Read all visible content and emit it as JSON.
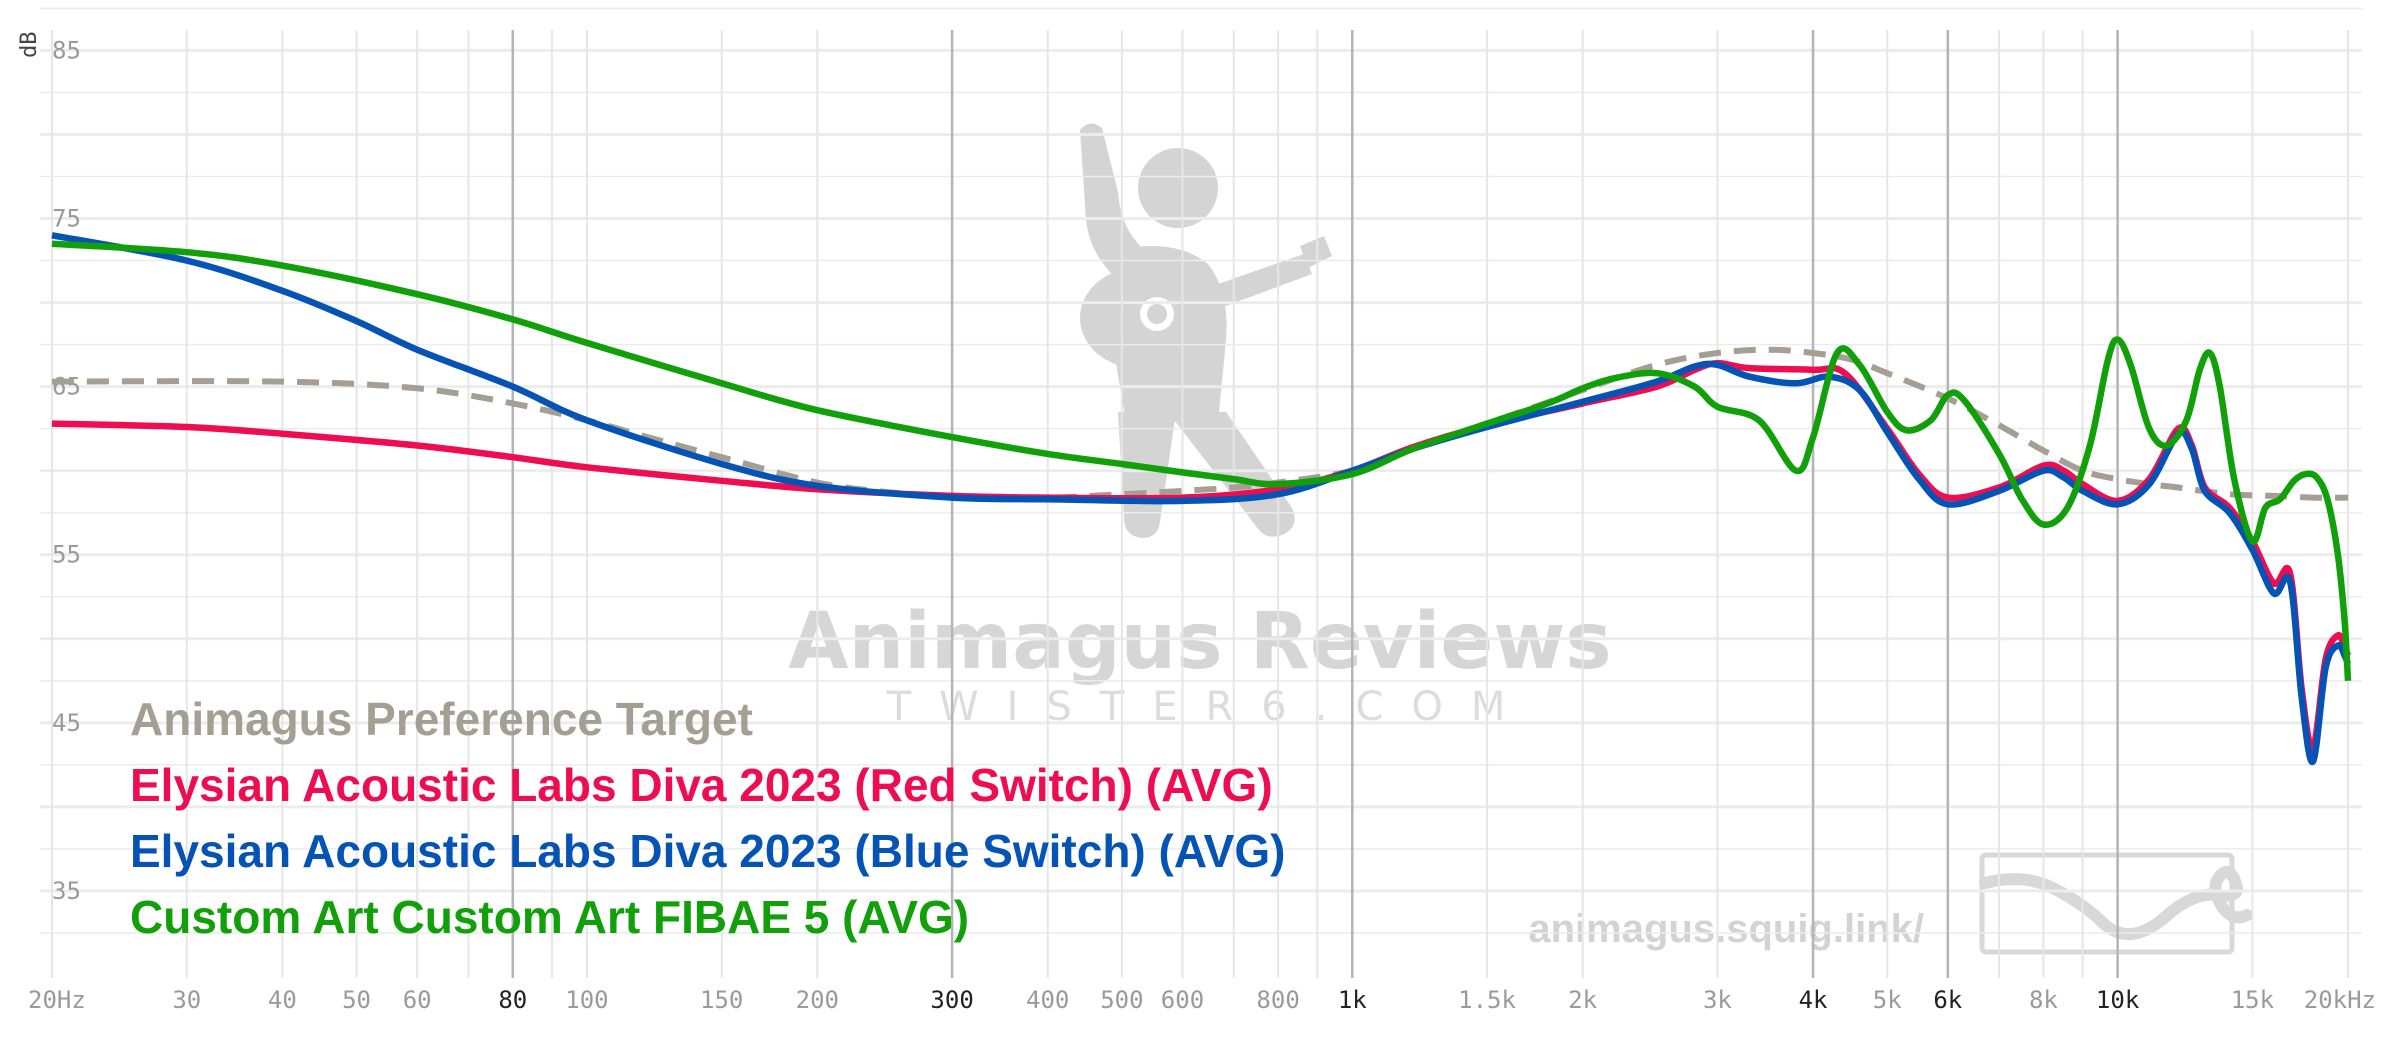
{
  "chart_data": {
    "type": "line",
    "ylabel": "dB",
    "xscale": "log",
    "xlim": [
      20,
      20000
    ],
    "ylim": [
      30,
      88
    ],
    "y_ticks": [
      {
        "value": 85,
        "label": "85"
      },
      {
        "value": 75,
        "label": "75"
      },
      {
        "value": 65,
        "label": "65"
      },
      {
        "value": 55,
        "label": "55"
      },
      {
        "value": 45,
        "label": "45"
      },
      {
        "value": 35,
        "label": "35"
      }
    ],
    "x_ticks": [
      {
        "value": 20,
        "label": "20Hz",
        "major": false
      },
      {
        "value": 30,
        "label": "30",
        "major": false
      },
      {
        "value": 40,
        "label": "40",
        "major": false
      },
      {
        "value": 50,
        "label": "50",
        "major": false
      },
      {
        "value": 60,
        "label": "60",
        "major": false
      },
      {
        "value": 80,
        "label": "80",
        "major": true
      },
      {
        "value": 100,
        "label": "100",
        "major": false
      },
      {
        "value": 150,
        "label": "150",
        "major": false
      },
      {
        "value": 200,
        "label": "200",
        "major": false
      },
      {
        "value": 300,
        "label": "300",
        "major": true
      },
      {
        "value": 400,
        "label": "400",
        "major": false
      },
      {
        "value": 500,
        "label": "500",
        "major": false
      },
      {
        "value": 600,
        "label": "600",
        "major": false
      },
      {
        "value": 800,
        "label": "800",
        "major": false
      },
      {
        "value": 1000,
        "label": "1k",
        "major": true
      },
      {
        "value": 1500,
        "label": "1.5k",
        "major": false
      },
      {
        "value": 2000,
        "label": "2k",
        "major": false
      },
      {
        "value": 3000,
        "label": "3k",
        "major": false
      },
      {
        "value": 4000,
        "label": "4k",
        "major": true
      },
      {
        "value": 5000,
        "label": "5k",
        "major": false
      },
      {
        "value": 6000,
        "label": "6k",
        "major": true
      },
      {
        "value": 8000,
        "label": "8k",
        "major": false
      },
      {
        "value": 10000,
        "label": "10k",
        "major": true
      },
      {
        "value": 15000,
        "label": "15k",
        "major": false
      },
      {
        "value": 20000,
        "label": "20kHz",
        "major": false
      }
    ],
    "grid": true,
    "legend_position": "bottom-left",
    "series": [
      {
        "name": "Animagus Preference Target",
        "color": "#a59e93",
        "dashed": true,
        "points": [
          [
            20,
            65.3
          ],
          [
            40,
            65.3
          ],
          [
            60,
            64.9
          ],
          [
            80,
            64.0
          ],
          [
            100,
            63.0
          ],
          [
            120,
            62.0
          ],
          [
            150,
            60.8
          ],
          [
            200,
            59.3
          ],
          [
            250,
            58.7
          ],
          [
            300,
            58.5
          ],
          [
            400,
            58.4
          ],
          [
            500,
            58.6
          ],
          [
            600,
            58.8
          ],
          [
            700,
            59.0
          ],
          [
            800,
            59.3
          ],
          [
            1000,
            60.0
          ],
          [
            1200,
            61.3
          ],
          [
            1500,
            62.8
          ],
          [
            2000,
            64.8
          ],
          [
            2500,
            66.3
          ],
          [
            3000,
            67.0
          ],
          [
            3500,
            67.2
          ],
          [
            4000,
            67.0
          ],
          [
            4500,
            66.6
          ],
          [
            5000,
            65.8
          ],
          [
            6000,
            64.3
          ],
          [
            7000,
            62.7
          ],
          [
            8000,
            61.2
          ],
          [
            9000,
            60.0
          ],
          [
            10000,
            59.5
          ],
          [
            11000,
            59.2
          ],
          [
            12000,
            59.0
          ],
          [
            14000,
            58.6
          ],
          [
            16000,
            58.5
          ],
          [
            18000,
            58.4
          ],
          [
            20000,
            58.4
          ]
        ]
      },
      {
        "name": "Elysian Acoustic Labs Diva 2023 (Red Switch) (AVG)",
        "color": "#ef0d52",
        "dashed": false,
        "points": [
          [
            20,
            62.8
          ],
          [
            30,
            62.6
          ],
          [
            40,
            62.2
          ],
          [
            60,
            61.5
          ],
          [
            80,
            60.8
          ],
          [
            100,
            60.2
          ],
          [
            150,
            59.4
          ],
          [
            200,
            58.9
          ],
          [
            300,
            58.5
          ],
          [
            400,
            58.4
          ],
          [
            600,
            58.4
          ],
          [
            800,
            58.9
          ],
          [
            1000,
            60.0
          ],
          [
            1200,
            61.4
          ],
          [
            1500,
            62.7
          ],
          [
            2000,
            64.0
          ],
          [
            2500,
            65.0
          ],
          [
            2800,
            66.0
          ],
          [
            3000,
            66.4
          ],
          [
            3300,
            66.1
          ],
          [
            4000,
            66.0
          ],
          [
            4400,
            65.8
          ],
          [
            5000,
            62.5
          ],
          [
            5500,
            59.8
          ],
          [
            6000,
            58.4
          ],
          [
            7000,
            59.0
          ],
          [
            8000,
            60.3
          ],
          [
            8500,
            60.0
          ],
          [
            9000,
            59.2
          ],
          [
            10000,
            58.2
          ],
          [
            11000,
            59.5
          ],
          [
            12000,
            62.5
          ],
          [
            12500,
            61.5
          ],
          [
            13000,
            59.0
          ],
          [
            14000,
            57.8
          ],
          [
            15000,
            55.8
          ],
          [
            16000,
            53.3
          ],
          [
            16800,
            53.9
          ],
          [
            17400,
            47.0
          ],
          [
            18000,
            43.5
          ],
          [
            18700,
            48.8
          ],
          [
            19400,
            50.2
          ],
          [
            19800,
            49.5
          ],
          [
            20000,
            49.0
          ]
        ]
      },
      {
        "name": "Elysian Acoustic Labs Diva 2023 (Blue Switch) (AVG)",
        "color": "#0553b5",
        "dashed": false,
        "points": [
          [
            20,
            74.0
          ],
          [
            30,
            72.5
          ],
          [
            40,
            70.7
          ],
          [
            50,
            68.9
          ],
          [
            60,
            67.2
          ],
          [
            80,
            65.0
          ],
          [
            100,
            63.0
          ],
          [
            150,
            60.4
          ],
          [
            200,
            59.1
          ],
          [
            300,
            58.4
          ],
          [
            400,
            58.3
          ],
          [
            600,
            58.2
          ],
          [
            800,
            58.6
          ],
          [
            1000,
            60.0
          ],
          [
            1200,
            61.3
          ],
          [
            1500,
            62.6
          ],
          [
            2000,
            64.1
          ],
          [
            2500,
            65.3
          ],
          [
            2800,
            66.2
          ],
          [
            3000,
            66.3
          ],
          [
            3300,
            65.6
          ],
          [
            3800,
            65.2
          ],
          [
            4200,
            65.6
          ],
          [
            4600,
            64.8
          ],
          [
            5000,
            62.3
          ],
          [
            5500,
            59.5
          ],
          [
            6000,
            58.0
          ],
          [
            7000,
            58.8
          ],
          [
            8000,
            60.0
          ],
          [
            8500,
            59.6
          ],
          [
            9000,
            58.8
          ],
          [
            10000,
            58.0
          ],
          [
            11000,
            59.2
          ],
          [
            12000,
            62.2
          ],
          [
            12500,
            61.3
          ],
          [
            13000,
            58.8
          ],
          [
            14000,
            57.5
          ],
          [
            15000,
            55.3
          ],
          [
            16000,
            52.7
          ],
          [
            16800,
            53.4
          ],
          [
            17400,
            46.5
          ],
          [
            18000,
            42.7
          ],
          [
            18700,
            48.3
          ],
          [
            19400,
            49.6
          ],
          [
            19800,
            49.0
          ],
          [
            20000,
            48.5
          ]
        ]
      },
      {
        "name": "Custom Art Custom Art FIBAE 5 (AVG)",
        "color": "#12a00a",
        "dashed": false,
        "points": [
          [
            20,
            73.5
          ],
          [
            30,
            73.0
          ],
          [
            40,
            72.2
          ],
          [
            60,
            70.5
          ],
          [
            80,
            69.0
          ],
          [
            100,
            67.6
          ],
          [
            150,
            65.2
          ],
          [
            200,
            63.6
          ],
          [
            300,
            62.0
          ],
          [
            400,
            61.0
          ],
          [
            500,
            60.4
          ],
          [
            600,
            59.9
          ],
          [
            700,
            59.5
          ],
          [
            800,
            59.2
          ],
          [
            1000,
            59.8
          ],
          [
            1200,
            61.3
          ],
          [
            1500,
            62.8
          ],
          [
            1800,
            64.0
          ],
          [
            2000,
            64.9
          ],
          [
            2200,
            65.5
          ],
          [
            2500,
            65.8
          ],
          [
            2800,
            65.0
          ],
          [
            3000,
            63.8
          ],
          [
            3400,
            63.0
          ],
          [
            3800,
            60.0
          ],
          [
            4000,
            62.0
          ],
          [
            4300,
            67.0
          ],
          [
            4600,
            66.3
          ],
          [
            5000,
            63.5
          ],
          [
            5300,
            62.4
          ],
          [
            5700,
            63.0
          ],
          [
            6000,
            64.5
          ],
          [
            6300,
            64.2
          ],
          [
            7000,
            61.0
          ],
          [
            7500,
            58.3
          ],
          [
            8000,
            56.8
          ],
          [
            8600,
            57.8
          ],
          [
            9200,
            61.5
          ],
          [
            9700,
            66.5
          ],
          [
            10000,
            67.8
          ],
          [
            10400,
            66.3
          ],
          [
            11000,
            62.5
          ],
          [
            11600,
            61.5
          ],
          [
            12300,
            63.0
          ],
          [
            12800,
            66.0
          ],
          [
            13200,
            67.0
          ],
          [
            13600,
            65.0
          ],
          [
            14200,
            59.5
          ],
          [
            15000,
            55.8
          ],
          [
            15600,
            57.8
          ],
          [
            16300,
            58.3
          ],
          [
            17000,
            59.4
          ],
          [
            17600,
            59.8
          ],
          [
            18200,
            59.6
          ],
          [
            18800,
            58.3
          ],
          [
            19400,
            55.0
          ],
          [
            19800,
            51.0
          ],
          [
            20000,
            47.5
          ]
        ]
      }
    ]
  },
  "watermark": {
    "title": "Animagus Reviews",
    "subtitle": "TWISTER6.COM",
    "url": "animagus.squig.link/"
  }
}
